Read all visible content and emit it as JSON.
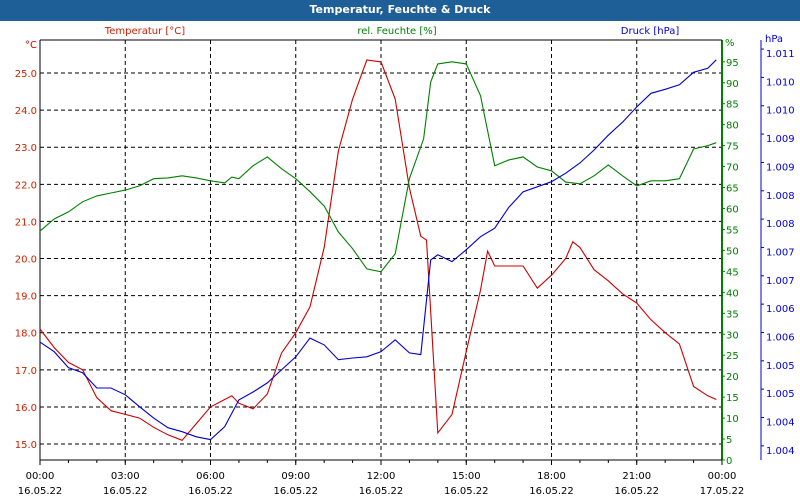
{
  "title": "Temperatur, Feuchte & Druck",
  "chart_data": {
    "type": "line",
    "title": "Temperatur, Feuchte & Druck",
    "x_unit": "hours since 16.05.22 00:00",
    "xlim": [
      0,
      24
    ],
    "x_ticks": [
      {
        "time": "00:00",
        "date": "16.05.22",
        "h": 0
      },
      {
        "time": "03:00",
        "date": "16.05.22",
        "h": 3
      },
      {
        "time": "06:00",
        "date": "16.05.22",
        "h": 6
      },
      {
        "time": "09:00",
        "date": "16.05.22",
        "h": 9
      },
      {
        "time": "12:00",
        "date": "16.05.22",
        "h": 12
      },
      {
        "time": "15:00",
        "date": "16.05.22",
        "h": 15
      },
      {
        "time": "18:00",
        "date": "16.05.22",
        "h": 18
      },
      {
        "time": "21:00",
        "date": "16.05.22",
        "h": 21
      },
      {
        "time": "00:00",
        "date": "17.05.22",
        "h": 24
      }
    ],
    "grid": true,
    "axes": {
      "temperature": {
        "legend": "Temperatur [°C]",
        "unit": "°C",
        "color": "#cc0000",
        "ylim": [
          14.57,
          25.89
        ],
        "ticks": [
          25.0,
          24.0,
          23.0,
          22.0,
          21.0,
          20.0,
          19.0,
          18.0,
          17.0,
          16.0,
          15.0
        ],
        "tick_labels": [
          "25.0",
          "24.0",
          "23.0",
          "22.0",
          "21.0",
          "20.0",
          "19.0",
          "18.0",
          "17.0",
          "16.0",
          "15.0"
        ]
      },
      "humidity": {
        "legend": "rel. Feuchte [%]",
        "unit": "%",
        "color": "#008000",
        "ylim": [
          0,
          100.2
        ],
        "ticks": [
          95,
          90,
          85,
          80,
          75,
          70,
          65,
          60,
          55,
          50,
          45,
          40,
          35,
          30,
          25,
          20,
          15,
          10,
          5,
          0
        ],
        "tick_labels": [
          "95",
          "90",
          "85",
          "80",
          "75",
          "70",
          "65",
          "60",
          "55",
          "50",
          "45",
          "40",
          "35",
          "30",
          "25",
          "20",
          "15",
          "10",
          "5",
          "0"
        ]
      },
      "pressure": {
        "legend": "Druck [hPa]",
        "unit": "hPa",
        "color": "#0000cc",
        "ylim": [
          1.00375,
          1.01116
        ],
        "ticks": [
          1.011,
          1.0105,
          1.01,
          1.0095,
          1.009,
          1.0085,
          1.008,
          1.0075,
          1.007,
          1.0065,
          1.006,
          1.0055,
          1.005,
          1.0045,
          1.004
        ],
        "tick_labels": [
          "1.011",
          "1.010",
          "1.010",
          "1.009",
          "1.009",
          "1.008",
          "1.008",
          "1.007",
          "1.007",
          "1.006",
          "1.006",
          "1.005",
          "1.005",
          "1.004",
          "1.004"
        ]
      }
    },
    "series": [
      {
        "name": "Temperatur",
        "axis": "temperature",
        "x": [
          0,
          0.5,
          1,
          1.5,
          2,
          2.5,
          3,
          3.5,
          4,
          4.5,
          5,
          5.5,
          6,
          6.5,
          6.75,
          7,
          7.5,
          8,
          8.5,
          9,
          9.5,
          10,
          10.5,
          11,
          11.5,
          12,
          12.5,
          13,
          13.4,
          13.6,
          14,
          14.5,
          15,
          15.5,
          15.75,
          16,
          16.5,
          17,
          17.5,
          18,
          18.5,
          18.75,
          19,
          19.5,
          20,
          20.5,
          21,
          21.5,
          22,
          22.5,
          23,
          23.5,
          23.8
        ],
        "values": [
          18.1,
          17.6,
          17.2,
          17.0,
          16.25,
          15.9,
          15.8,
          15.7,
          15.45,
          15.25,
          15.1,
          15.55,
          16.0,
          16.2,
          16.3,
          16.1,
          15.95,
          16.35,
          17.45,
          18.0,
          18.7,
          20.3,
          22.9,
          24.3,
          25.35,
          25.3,
          24.3,
          21.9,
          20.6,
          20.5,
          15.3,
          15.8,
          17.5,
          19.15,
          20.2,
          19.8,
          19.8,
          19.8,
          19.2,
          19.55,
          20.0,
          20.45,
          20.3,
          19.7,
          19.4,
          19.05,
          18.8,
          18.35,
          18.0,
          17.7,
          16.55,
          16.3,
          16.2
        ]
      },
      {
        "name": "rel. Feuchte",
        "axis": "humidity",
        "x": [
          0,
          0.5,
          1,
          1.5,
          2,
          2.5,
          3,
          3.5,
          4,
          4.5,
          5,
          5.5,
          6,
          6.5,
          6.75,
          7,
          7.5,
          8,
          8.5,
          9,
          9.5,
          10,
          10.5,
          11,
          11.5,
          12,
          12.5,
          13,
          13.5,
          13.75,
          14,
          14.5,
          15,
          15.5,
          16,
          16.5,
          17,
          17.5,
          18,
          18.5,
          19,
          19.5,
          20,
          20.5,
          21,
          21.5,
          22,
          22.5,
          23,
          23.5,
          23.8
        ],
        "values": [
          54.6,
          57.5,
          59.2,
          61.6,
          63.0,
          63.7,
          64.4,
          65.4,
          67.1,
          67.3,
          67.8,
          67.3,
          66.6,
          66.1,
          67.5,
          67.1,
          70.2,
          72.3,
          69.5,
          67.1,
          64.0,
          60.6,
          54.4,
          50.4,
          45.6,
          44.9,
          49.2,
          67.1,
          76.6,
          90.2,
          94.5,
          95.0,
          94.5,
          86.9,
          70.2,
          71.6,
          72.3,
          69.9,
          69.0,
          66.3,
          65.9,
          67.8,
          70.4,
          67.8,
          65.4,
          66.6,
          66.6,
          67.1,
          74.2,
          75.0,
          75.7
        ]
      },
      {
        "name": "Druck",
        "axis": "pressure",
        "x": [
          0,
          0.5,
          1,
          1.5,
          2,
          2.5,
          3,
          3.5,
          4,
          4.5,
          5,
          5.5,
          6,
          6.5,
          7,
          7.5,
          8,
          8.5,
          9,
          9.5,
          10,
          10.5,
          11,
          11.5,
          12,
          12.5,
          13,
          13.4,
          13.75,
          14,
          14.5,
          15,
          15.5,
          16,
          16.5,
          17,
          17.5,
          18,
          18.5,
          19,
          19.5,
          20,
          20.5,
          21,
          21.5,
          22,
          22.5,
          23,
          23.5,
          23.8
        ],
        "values": [
          1.00583,
          1.00566,
          1.00538,
          1.00529,
          1.00502,
          1.00502,
          1.0049,
          1.00469,
          1.00449,
          1.00432,
          1.00425,
          1.00416,
          1.00411,
          1.00434,
          1.00481,
          1.00495,
          1.00511,
          1.00534,
          1.00557,
          1.0059,
          1.00578,
          1.00552,
          1.00555,
          1.00557,
          1.00566,
          1.00587,
          1.00564,
          1.00561,
          1.00728,
          1.00737,
          1.00725,
          1.00746,
          1.00769,
          1.00784,
          1.00821,
          1.00848,
          1.00857,
          1.00866,
          1.00881,
          1.00899,
          1.00922,
          1.00948,
          1.00971,
          1.00998,
          1.01022,
          1.01029,
          1.01037,
          1.01059,
          1.01066,
          1.01081
        ]
      }
    ]
  }
}
